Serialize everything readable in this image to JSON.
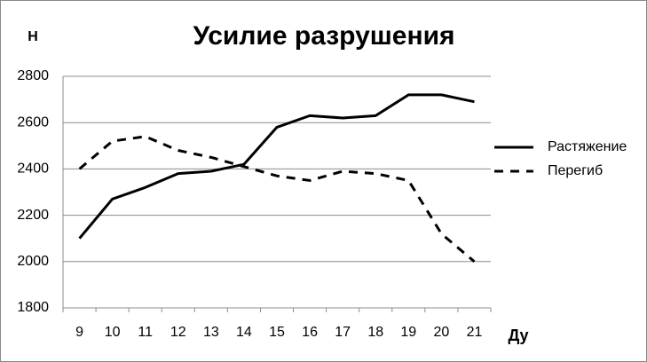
{
  "chart_data": {
    "type": "line",
    "title": "Усилие разрушения",
    "y_label": "Н",
    "x_label": "Ду",
    "categories": [
      "9",
      "10",
      "11",
      "12",
      "13",
      "14",
      "15",
      "16",
      "17",
      "18",
      "19",
      "20",
      "21"
    ],
    "series": [
      {
        "name": "Растяжение",
        "color": "#000000",
        "dash": "solid",
        "values": [
          2100,
          2270,
          2320,
          2380,
          2390,
          2420,
          2580,
          2630,
          2620,
          2630,
          2720,
          2720,
          2690
        ]
      },
      {
        "name": "Перегиб",
        "color": "#000000",
        "dash": "dashed",
        "values": [
          2400,
          2520,
          2540,
          2480,
          2450,
          2410,
          2370,
          2350,
          2390,
          2380,
          2350,
          2120,
          2000
        ]
      }
    ],
    "ylim": [
      1800,
      2800
    ],
    "yticks": [
      1800,
      2000,
      2200,
      2400,
      2600,
      2800
    ],
    "grid": true,
    "legend": "right"
  }
}
